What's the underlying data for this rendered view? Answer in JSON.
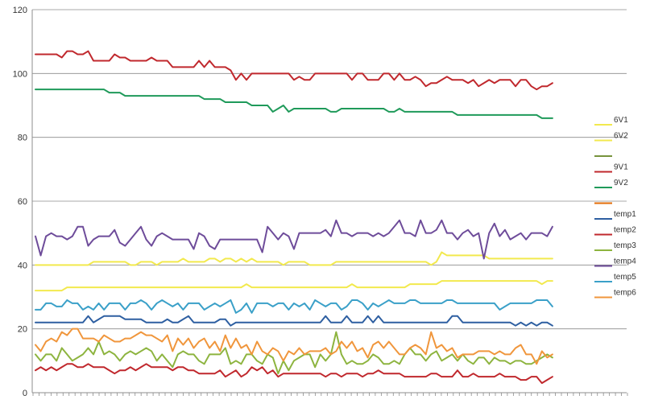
{
  "chart_data": {
    "type": "line",
    "title": "",
    "xlabel": "",
    "ylabel": "",
    "ylim": [
      0,
      120
    ],
    "y_ticks": [
      "0",
      "20",
      "40",
      "60",
      "80",
      "100",
      "120"
    ],
    "grid": "horizontal",
    "legend_position": "right",
    "point_count": 99,
    "series": [
      {
        "name": "6V1",
        "color": "#f2e94e",
        "values": [
          40,
          40,
          40,
          40,
          40,
          40,
          40,
          40,
          40,
          40,
          40,
          41,
          41,
          41,
          41,
          41,
          41,
          41,
          40,
          40,
          41,
          41,
          41,
          40,
          41,
          41,
          41,
          41,
          42,
          41,
          41,
          41,
          41,
          42,
          42,
          41,
          42,
          42,
          41,
          42,
          41,
          42,
          41,
          41,
          41,
          41,
          41,
          40,
          41,
          41,
          41,
          41,
          40,
          40,
          40,
          40,
          40,
          41,
          41,
          41,
          41,
          41,
          41,
          41,
          41,
          41,
          41,
          41,
          41,
          41,
          41,
          41,
          41,
          41,
          41,
          40,
          41,
          44,
          43,
          43,
          43,
          43,
          43,
          43,
          43,
          43,
          42,
          42,
          42,
          42,
          42,
          42,
          42,
          42,
          42,
          42,
          42,
          42,
          42
        ]
      },
      {
        "name": "6V2",
        "color": "#f2e94e",
        "values": [
          32,
          32,
          32,
          32,
          32,
          32,
          33,
          33,
          33,
          33,
          33,
          33,
          33,
          33,
          33,
          33,
          33,
          33,
          33,
          33,
          33,
          33,
          33,
          33,
          33,
          33,
          33,
          33,
          33,
          33,
          33,
          33,
          33,
          33,
          33,
          33,
          33,
          33,
          33,
          33,
          34,
          33,
          33,
          33,
          33,
          33,
          33,
          33,
          33,
          33,
          33,
          33,
          33,
          33,
          33,
          33,
          33,
          33,
          33,
          33,
          34,
          33,
          33,
          33,
          33,
          33,
          33,
          33,
          33,
          33,
          33,
          34,
          34,
          34,
          34,
          34,
          34,
          35,
          35,
          35,
          35,
          35,
          35,
          35,
          35,
          35,
          35,
          35,
          35,
          35,
          35,
          35,
          35,
          35,
          35,
          35,
          34,
          35,
          35
        ]
      },
      {
        "name": "",
        "color": "#77933c",
        "values": []
      },
      {
        "name": "9V1",
        "color": "#c0282d",
        "values": [
          106,
          106,
          106,
          106,
          106,
          105,
          107,
          107,
          106,
          106,
          107,
          104,
          104,
          104,
          104,
          106,
          105,
          105,
          104,
          104,
          104,
          104,
          105,
          104,
          104,
          104,
          102,
          102,
          102,
          102,
          102,
          104,
          102,
          104,
          102,
          102,
          102,
          101,
          98,
          100,
          98,
          100,
          100,
          100,
          100,
          100,
          100,
          100,
          100,
          98,
          99,
          98,
          98,
          100,
          100,
          100,
          100,
          100,
          100,
          100,
          98,
          100,
          100,
          98,
          98,
          98,
          100,
          100,
          98,
          100,
          98,
          98,
          99,
          98,
          96,
          97,
          97,
          98,
          99,
          98,
          98,
          98,
          97,
          98,
          96,
          97,
          98,
          97,
          98,
          98,
          98,
          96,
          98,
          98,
          96,
          95,
          96,
          96,
          97
        ]
      },
      {
        "name": "9V2",
        "color": "#1f9a5a",
        "values": [
          95,
          95,
          95,
          95,
          95,
          95,
          95,
          95,
          95,
          95,
          95,
          95,
          95,
          95,
          94,
          94,
          94,
          93,
          93,
          93,
          93,
          93,
          93,
          93,
          93,
          93,
          93,
          93,
          93,
          93,
          93,
          93,
          92,
          92,
          92,
          92,
          91,
          91,
          91,
          91,
          91,
          90,
          90,
          90,
          90,
          88,
          89,
          90,
          88,
          89,
          89,
          89,
          89,
          89,
          89,
          89,
          88,
          88,
          89,
          89,
          89,
          89,
          89,
          89,
          89,
          89,
          89,
          88,
          88,
          89,
          88,
          88,
          88,
          88,
          88,
          88,
          88,
          88,
          88,
          88,
          87,
          87,
          87,
          87,
          87,
          87,
          87,
          87,
          87,
          87,
          87,
          87,
          87,
          87,
          87,
          87,
          86,
          86,
          86
        ]
      },
      {
        "name": "",
        "color": "#e36c09",
        "values": []
      },
      {
        "name": "temp1",
        "color": "#2e5fa1",
        "values": [
          22,
          22,
          22,
          22,
          22,
          22,
          22,
          22,
          22,
          22,
          24,
          22,
          23,
          24,
          24,
          24,
          24,
          23,
          23,
          23,
          23,
          22,
          22,
          22,
          22,
          23,
          22,
          22,
          23,
          24,
          22,
          22,
          22,
          22,
          22,
          23,
          23,
          21,
          22,
          22,
          22,
          22,
          22,
          22,
          22,
          22,
          22,
          22,
          22,
          22,
          22,
          22,
          22,
          22,
          22,
          24,
          22,
          22,
          22,
          24,
          22,
          22,
          22,
          24,
          22,
          24,
          22,
          22,
          22,
          22,
          22,
          22,
          22,
          22,
          22,
          22,
          22,
          22,
          22,
          24,
          24,
          22,
          22,
          22,
          22,
          22,
          22,
          22,
          22,
          22,
          22,
          21,
          22,
          21,
          22,
          21,
          22,
          22,
          21
        ]
      },
      {
        "name": "temp2",
        "color": "#c0282d",
        "values": [
          7,
          8,
          7,
          8,
          7,
          8,
          9,
          9,
          8,
          8,
          9,
          8,
          8,
          8,
          7,
          6,
          7,
          7,
          8,
          7,
          8,
          9,
          8,
          8,
          8,
          8,
          7,
          8,
          8,
          7,
          7,
          6,
          6,
          6,
          6,
          7,
          5,
          6,
          7,
          5,
          6,
          8,
          7,
          8,
          6,
          7,
          5,
          6,
          6,
          6,
          6,
          6,
          6,
          6,
          6,
          5,
          6,
          6,
          5,
          6,
          6,
          6,
          5,
          6,
          6,
          7,
          6,
          6,
          6,
          6,
          5,
          5,
          5,
          5,
          5,
          6,
          6,
          5,
          5,
          5,
          7,
          5,
          5,
          6,
          5,
          5,
          5,
          5,
          6,
          5,
          5,
          5,
          4,
          4,
          5,
          5,
          3,
          4,
          5
        ]
      },
      {
        "name": "temp3",
        "color": "#8db43f",
        "values": [
          12,
          10,
          12,
          12,
          10,
          14,
          12,
          10,
          11,
          12,
          14,
          12,
          16,
          12,
          13,
          12,
          10,
          12,
          13,
          12,
          13,
          14,
          13,
          10,
          12,
          10,
          8,
          12,
          13,
          12,
          12,
          10,
          9,
          12,
          12,
          12,
          14,
          9,
          10,
          9,
          12,
          12,
          10,
          9,
          12,
          11,
          6,
          10,
          7,
          10,
          11,
          12,
          12,
          8,
          12,
          10,
          12,
          19,
          12,
          9,
          10,
          9,
          9,
          10,
          12,
          11,
          9,
          9,
          10,
          9,
          12,
          14,
          12,
          12,
          10,
          12,
          13,
          10,
          11,
          12,
          10,
          12,
          10,
          9,
          11,
          11,
          9,
          11,
          10,
          10,
          9,
          10,
          10,
          9,
          9,
          10,
          11,
          12,
          11
        ]
      },
      {
        "name": "temp4",
        "color": "#6e4c9a",
        "values": [
          49,
          43,
          49,
          50,
          49,
          49,
          48,
          49,
          52,
          52,
          46,
          48,
          49,
          49,
          49,
          51,
          47,
          46,
          48,
          50,
          52,
          48,
          46,
          49,
          50,
          49,
          48,
          48,
          48,
          48,
          45,
          50,
          49,
          46,
          45,
          48,
          48,
          48,
          48,
          48,
          48,
          48,
          48,
          44,
          52,
          50,
          48,
          50,
          49,
          45,
          50,
          50,
          50,
          50,
          50,
          51,
          49,
          54,
          50,
          50,
          49,
          50,
          50,
          50,
          49,
          50,
          49,
          50,
          52,
          54,
          50,
          50,
          49,
          54,
          50,
          50,
          51,
          54,
          50,
          50,
          48,
          50,
          51,
          49,
          50,
          42,
          50,
          53,
          49,
          51,
          48,
          49,
          50,
          48,
          50,
          50,
          50,
          49,
          52
        ]
      },
      {
        "name": "temp5",
        "color": "#3aa0c8",
        "values": [
          26,
          26,
          28,
          28,
          27,
          27,
          29,
          28,
          28,
          26,
          27,
          26,
          28,
          26,
          28,
          28,
          28,
          26,
          28,
          28,
          29,
          28,
          26,
          28,
          29,
          28,
          27,
          28,
          26,
          28,
          28,
          28,
          26,
          27,
          28,
          27,
          28,
          29,
          25,
          26,
          28,
          25,
          28,
          28,
          28,
          27,
          28,
          28,
          26,
          28,
          27,
          28,
          26,
          29,
          28,
          27,
          28,
          28,
          26,
          27,
          29,
          29,
          28,
          26,
          28,
          27,
          28,
          29,
          28,
          28,
          28,
          29,
          29,
          28,
          28,
          28,
          28,
          28,
          29,
          29,
          28,
          28,
          28,
          28,
          28,
          28,
          28,
          28,
          26,
          27,
          28,
          28,
          28,
          28,
          28,
          29,
          29,
          29,
          27
        ]
      },
      {
        "name": "temp6",
        "color": "#f0963c",
        "values": [
          15,
          13,
          16,
          17,
          16,
          19,
          18,
          20,
          20,
          17,
          17,
          17,
          16,
          18,
          17,
          16,
          16,
          17,
          17,
          18,
          19,
          18,
          18,
          17,
          16,
          18,
          13,
          17,
          15,
          17,
          14,
          16,
          17,
          14,
          16,
          13,
          18,
          14,
          17,
          14,
          15,
          12,
          16,
          13,
          12,
          14,
          13,
          10,
          13,
          12,
          14,
          12,
          13,
          13,
          13,
          14,
          12,
          13,
          16,
          14,
          16,
          13,
          14,
          11,
          15,
          16,
          14,
          16,
          14,
          12,
          12,
          14,
          15,
          14,
          12,
          19,
          14,
          15,
          13,
          14,
          11,
          12,
          12,
          12,
          13,
          13,
          13,
          12,
          13,
          12,
          12,
          14,
          15,
          12,
          12,
          9,
          13,
          11,
          12
        ]
      }
    ]
  }
}
